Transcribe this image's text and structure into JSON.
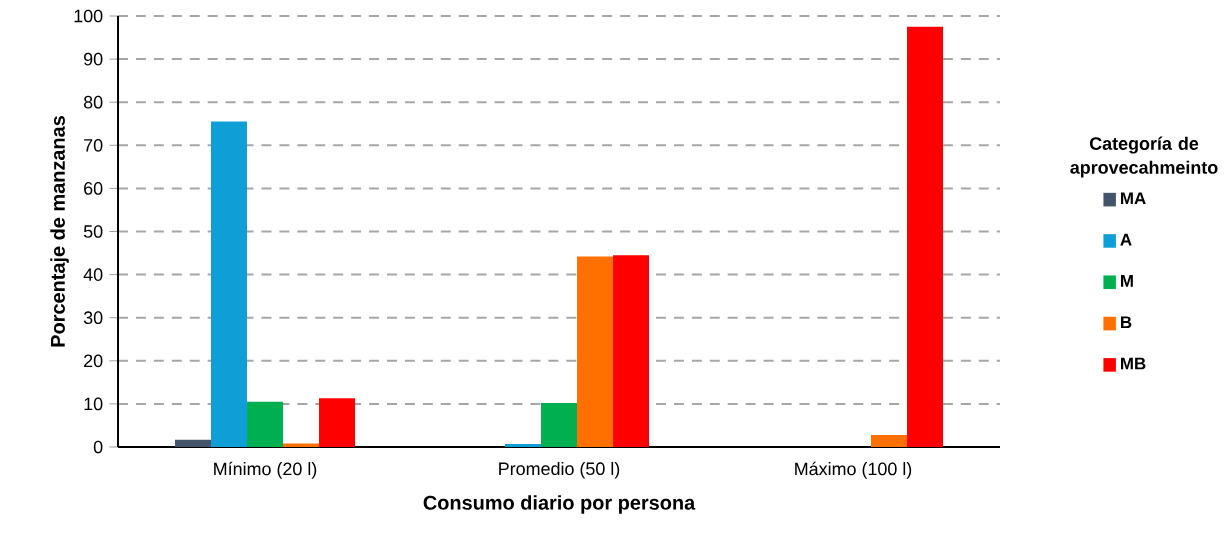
{
  "chart_data": {
    "type": "bar",
    "xlabel": "Consumo diario por persona",
    "ylabel": "Porcentaje de manzanas",
    "legend_title": "Categoría de aprovecahmeinto",
    "categories": [
      "Mínimo (20 l)",
      "Promedio (50 l)",
      "Máximo (100 l)"
    ],
    "series": [
      {
        "name": "MA",
        "color": "#44546a",
        "values": [
          1.7,
          0,
          0
        ]
      },
      {
        "name": "A",
        "color": "#0f9ed5",
        "values": [
          75.5,
          0.7,
          0
        ]
      },
      {
        "name": "M",
        "color": "#00b050",
        "values": [
          10.5,
          10.2,
          0
        ]
      },
      {
        "name": "B",
        "color": "#ff7000",
        "values": [
          0.8,
          44.2,
          2.8
        ]
      },
      {
        "name": "MB",
        "color": "#ff0000",
        "values": [
          11.3,
          44.5,
          97.5
        ]
      }
    ],
    "ylim": [
      0,
      100
    ],
    "yticks": [
      0,
      10,
      20,
      30,
      40,
      50,
      60,
      70,
      80,
      90,
      100
    ],
    "grid": "y",
    "legend": "right"
  }
}
